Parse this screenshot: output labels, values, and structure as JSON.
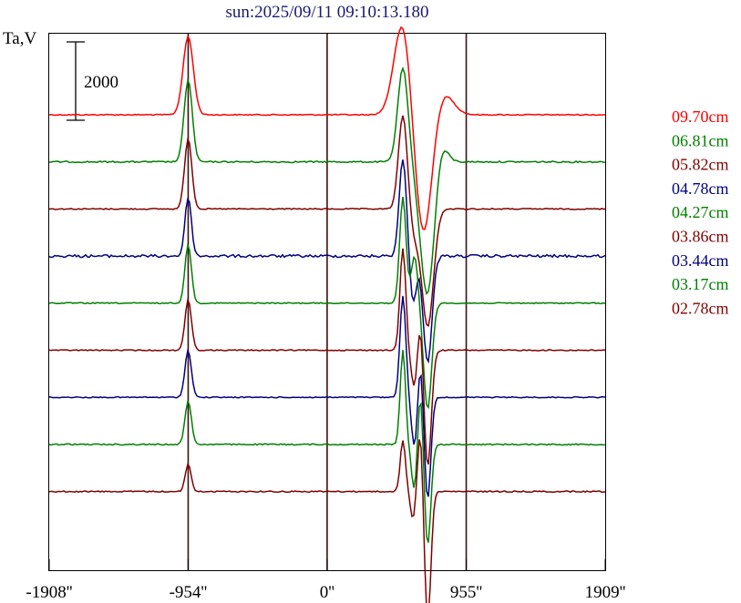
{
  "chart_data": {
    "type": "line",
    "title": "sun:2025/09/11 09:10:13.180",
    "ylabel": "Ta,V",
    "scale_bar_label": "2000",
    "scale_bar_value": 2000,
    "xlim": [
      -1908,
      1909
    ],
    "x_ticks": [
      {
        "value": -1908,
        "label": "-1908''"
      },
      {
        "value": -954,
        "label": "-954''"
      },
      {
        "value": 0,
        "label": "0''"
      },
      {
        "value": 955,
        "label": "955''"
      },
      {
        "value": 1909,
        "label": "1909''"
      }
    ],
    "vlines": [
      -954,
      0,
      955
    ],
    "series": [
      {
        "name": "09.70cm",
        "color": "#ff0000",
        "noise": 1.2,
        "features": [
          {
            "x": -954,
            "a": 2000,
            "w": 35
          },
          {
            "x": 520,
            "a": 2400,
            "w": 60
          },
          {
            "x": 660,
            "a": -3200,
            "w": 60
          },
          {
            "x": 790,
            "a": 600,
            "w": 70
          }
        ]
      },
      {
        "name": "06.81cm",
        "color": "#008000",
        "noise": 1.6,
        "features": [
          {
            "x": -954,
            "a": 2100,
            "w": 28
          },
          {
            "x": 520,
            "a": 2400,
            "w": 35
          },
          {
            "x": 690,
            "a": -3500,
            "w": 50
          },
          {
            "x": 770,
            "a": 700,
            "w": 45
          }
        ]
      },
      {
        "name": "05.82cm",
        "color": "#800000",
        "noise": 1.2,
        "features": [
          {
            "x": -954,
            "a": 1800,
            "w": 25
          },
          {
            "x": 520,
            "a": 2400,
            "w": 30
          },
          {
            "x": 600,
            "a": -600,
            "w": 30
          },
          {
            "x": 690,
            "a": -3000,
            "w": 40
          }
        ]
      },
      {
        "name": "04.78cm",
        "color": "#000080",
        "noise": 3.0,
        "features": [
          {
            "x": -954,
            "a": 1500,
            "w": 22
          },
          {
            "x": 520,
            "a": 2500,
            "w": 25
          },
          {
            "x": 590,
            "a": -1200,
            "w": 22
          },
          {
            "x": 690,
            "a": -2700,
            "w": 30
          }
        ]
      },
      {
        "name": "04.27cm",
        "color": "#008000",
        "noise": 1.2,
        "features": [
          {
            "x": -954,
            "a": 1500,
            "w": 22
          },
          {
            "x": 520,
            "a": 2700,
            "w": 22
          },
          {
            "x": 600,
            "a": 1200,
            "w": 22
          },
          {
            "x": 690,
            "a": -2700,
            "w": 28
          }
        ]
      },
      {
        "name": "03.86cm",
        "color": "#800000",
        "noise": 1.2,
        "features": [
          {
            "x": -954,
            "a": 1300,
            "w": 22
          },
          {
            "x": 520,
            "a": 2600,
            "w": 20
          },
          {
            "x": 600,
            "a": -1000,
            "w": 22
          },
          {
            "x": 640,
            "a": 1000,
            "w": 20
          },
          {
            "x": 690,
            "a": -3000,
            "w": 25
          }
        ]
      },
      {
        "name": "03.44cm",
        "color": "#000080",
        "noise": 1.2,
        "features": [
          {
            "x": -954,
            "a": 1200,
            "w": 22
          },
          {
            "x": 520,
            "a": 2600,
            "w": 20
          },
          {
            "x": 600,
            "a": -1300,
            "w": 20
          },
          {
            "x": 640,
            "a": 1000,
            "w": 18
          },
          {
            "x": 690,
            "a": -2600,
            "w": 22
          }
        ]
      },
      {
        "name": "03.17cm",
        "color": "#008000",
        "noise": 1.4,
        "features": [
          {
            "x": -954,
            "a": 1100,
            "w": 22
          },
          {
            "x": 520,
            "a": 2400,
            "w": 18
          },
          {
            "x": 600,
            "a": -1200,
            "w": 20
          },
          {
            "x": 640,
            "a": 1500,
            "w": 18
          },
          {
            "x": 690,
            "a": -2600,
            "w": 22
          }
        ]
      },
      {
        "name": "02.78cm",
        "color": "#800000",
        "noise": 1.4,
        "features": [
          {
            "x": -954,
            "a": 700,
            "w": 20
          },
          {
            "x": 520,
            "a": 1300,
            "w": 18
          },
          {
            "x": 590,
            "a": -700,
            "w": 18
          },
          {
            "x": 640,
            "a": 1600,
            "w": 18
          },
          {
            "x": 690,
            "a": -3300,
            "w": 22
          }
        ]
      }
    ]
  }
}
